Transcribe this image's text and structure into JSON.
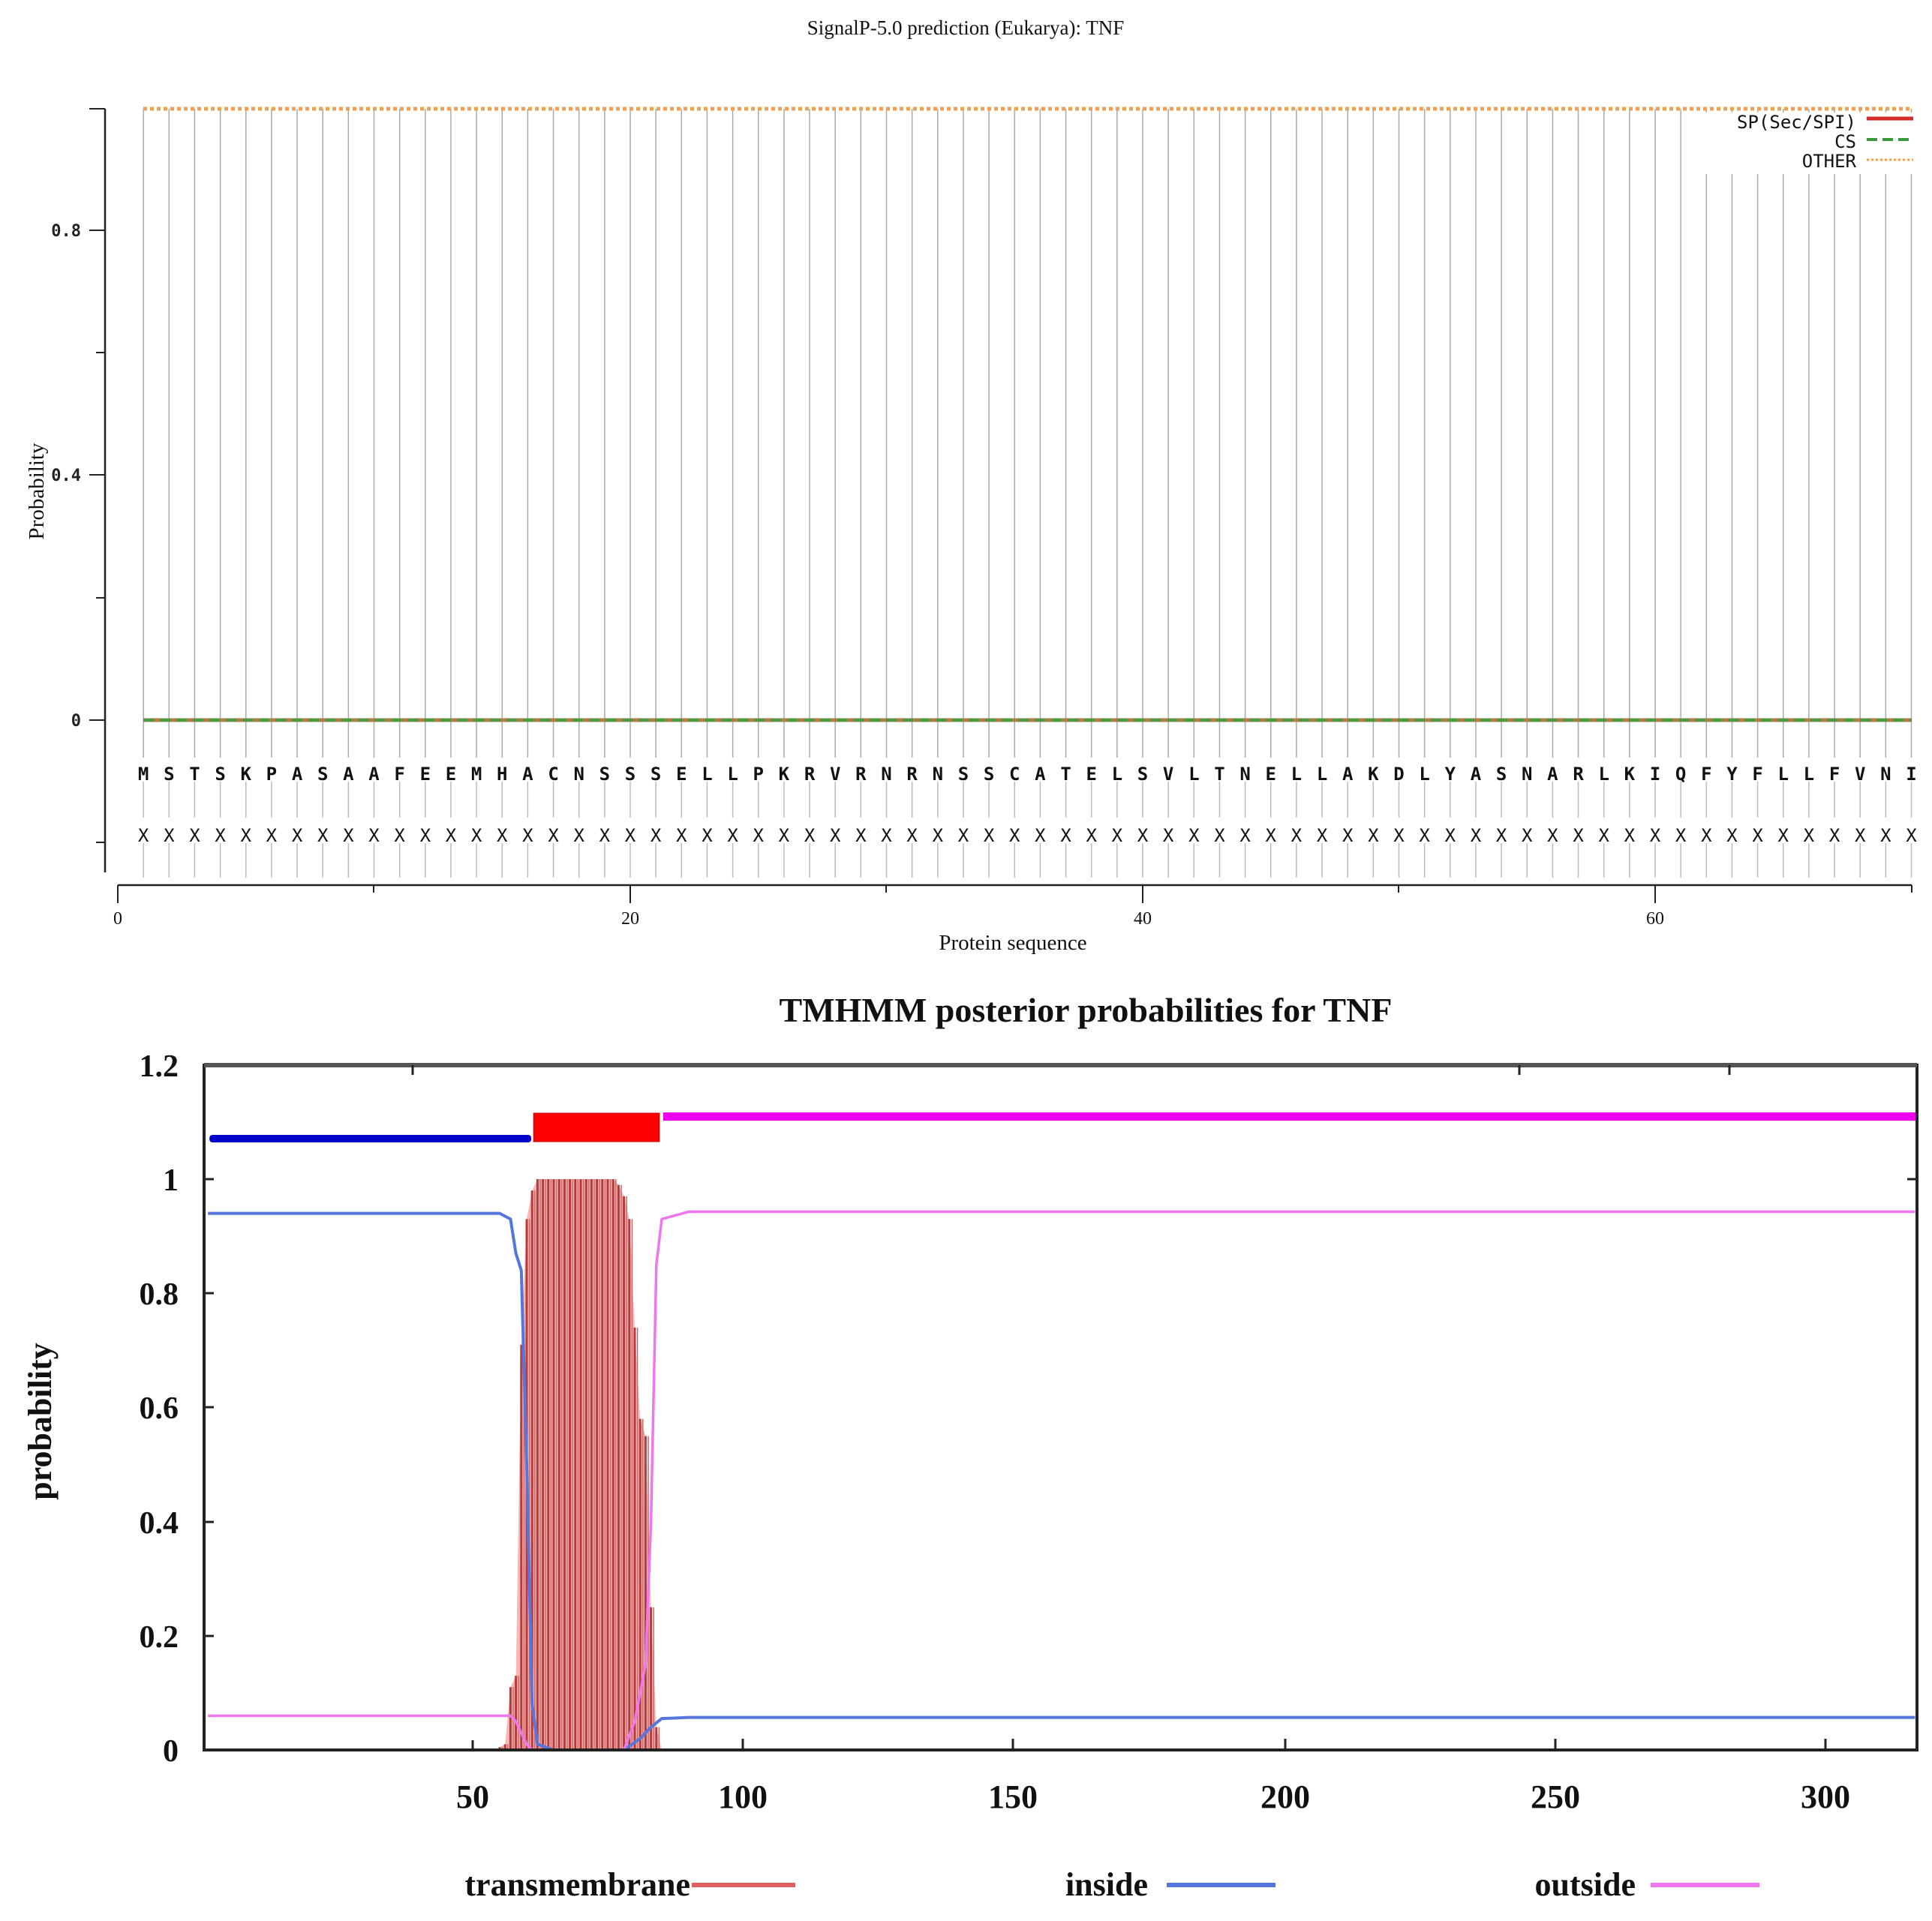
{
  "chart_data": [
    {
      "type": "line",
      "title": "SignalP-5.0 prediction (Eukarya):  TNF",
      "xlabel": "Protein sequence",
      "ylabel": "Probability",
      "xlim": [
        0,
        70
      ],
      "ylim": [
        -0.2,
        1.0
      ],
      "x_ticks": [
        0,
        20,
        40,
        60
      ],
      "x_minor_ticks": [
        10,
        30,
        50,
        70
      ],
      "y_ticks": [
        0,
        0.4,
        0.8
      ],
      "y_tick_labels": [
        "0",
        "0.4",
        "0.8"
      ],
      "y_minor_ticks": [
        -0.2,
        0.2,
        0.6
      ],
      "grid": "vertical line per residue",
      "legend_position": "top-right",
      "sequence": "MSTSKPASAAFEEMHACNSSSELLPKRVRNRNSSCATELSVLTNELLAKDLYASNARLKIQFYFLLFVNI",
      "annotation_row": "XXXXXXXXXXXXXXXXXXXXXXXXXXXXXXXXXXXXXXXXXXXXXXXXXXXXXXXXXXXXXXXXXXXXXX",
      "series": [
        {
          "name": "SP(Sec/SPI)",
          "color": "#d42a2a",
          "style": "solid",
          "x_range": [
            1,
            70
          ],
          "value": 0.0
        },
        {
          "name": "CS",
          "color": "#3a9a3a",
          "style": "dashed",
          "x_range": [
            1,
            70
          ],
          "value": 0.0
        },
        {
          "name": "OTHER",
          "color": "#f0a050",
          "style": "dotted",
          "x_range": [
            1,
            70
          ],
          "value": 1.0
        }
      ]
    },
    {
      "type": "area",
      "title": "TMHMM posterior probabilities for TNF",
      "xlabel": "",
      "ylabel": "probability",
      "xlim": [
        1,
        317
      ],
      "ylim": [
        0,
        1.2
      ],
      "x_ticks": [
        50,
        100,
        150,
        200,
        250,
        300
      ],
      "y_ticks": [
        0,
        0.2,
        0.4,
        0.6,
        0.8,
        1,
        1.2
      ],
      "y_tick_labels": [
        "0",
        "0.2",
        "0.4",
        "0.6",
        "0.8",
        "1",
        "1.2"
      ],
      "legend_position": "bottom",
      "topology": [
        {
          "region": "inside",
          "start": 1,
          "end": 60,
          "color": "#0000cc"
        },
        {
          "region": "TMhelix",
          "start": 61,
          "end": 84,
          "color": "#ff0000"
        },
        {
          "region": "outside",
          "start": 85,
          "end": 317,
          "color": "#ee00ee"
        }
      ],
      "series": [
        {
          "name": "transmembrane",
          "color": "#e06060",
          "fill": "#f8b8b8",
          "x": [
            55,
            56,
            57,
            58,
            59,
            60,
            61,
            62,
            63,
            64,
            65,
            66,
            67,
            68,
            69,
            70,
            71,
            72,
            73,
            74,
            75,
            76,
            77,
            78,
            79,
            80,
            81,
            82,
            83,
            84,
            85
          ],
          "values": [
            0.005,
            0.01,
            0.11,
            0.13,
            0.71,
            0.93,
            0.98,
            1.0,
            1.0,
            1.0,
            1.0,
            1.0,
            1.0,
            1.0,
            1.0,
            1.0,
            1.0,
            1.0,
            1.0,
            1.0,
            1.0,
            1.0,
            0.99,
            0.97,
            0.93,
            0.74,
            0.58,
            0.55,
            0.25,
            0.04,
            0.0
          ]
        },
        {
          "name": "inside",
          "color": "#5577dd",
          "x": [
            1,
            55,
            57,
            58,
            59,
            60,
            61,
            62,
            65,
            78,
            81,
            83,
            85,
            90,
            317
          ],
          "values": [
            0.94,
            0.94,
            0.93,
            0.87,
            0.84,
            0.5,
            0.08,
            0.01,
            0.0,
            0.0,
            0.02,
            0.04,
            0.055,
            0.057,
            0.057
          ]
        },
        {
          "name": "outside",
          "color": "#ee77ee",
          "x": [
            1,
            57,
            58,
            59,
            60,
            61,
            62,
            78,
            80,
            82,
            83,
            84,
            85,
            90,
            317
          ],
          "values": [
            0.06,
            0.06,
            0.05,
            0.03,
            0.01,
            0.0,
            0.0,
            0.0,
            0.05,
            0.15,
            0.4,
            0.85,
            0.93,
            0.943,
            0.943
          ]
        }
      ],
      "legend": [
        "transmembrane",
        "inside",
        "outside"
      ]
    }
  ],
  "signalp": {
    "title": "SignalP-5.0 prediction (Eukarya):  TNF",
    "ylabel": "Probability",
    "xlabel": "Protein sequence",
    "y_tick_labels": [
      "0.8",
      "0.4",
      "0"
    ],
    "x_tick_labels": [
      "0",
      "20",
      "40",
      "60"
    ],
    "legend": [
      {
        "label": "SP(Sec/SPI)",
        "color": "#d42a2a"
      },
      {
        "label": "CS",
        "color": "#3a9a3a"
      },
      {
        "label": "OTHER",
        "color": "#f0a050"
      }
    ],
    "sequence": "MSTSKPASAAFEEMHACNSSSELLPKRVRNRNSSCATELSVLTNELLAKDLYASNARLKIQFYFLLFVNI",
    "annotation_char": "X"
  },
  "tmhmm": {
    "title": "TMHMM posterior probabilities for TNF",
    "ylabel": "probability",
    "y_tick_labels": [
      "1.2",
      "1",
      "0.8",
      "0.6",
      "0.4",
      "0.2",
      "0"
    ],
    "x_tick_labels": [
      "50",
      "100",
      "150",
      "200",
      "250",
      "300"
    ],
    "legend": [
      {
        "label": "transmembrane",
        "color": "#e06060"
      },
      {
        "label": "inside",
        "color": "#5577dd"
      },
      {
        "label": "outside",
        "color": "#ee77ee"
      }
    ]
  }
}
